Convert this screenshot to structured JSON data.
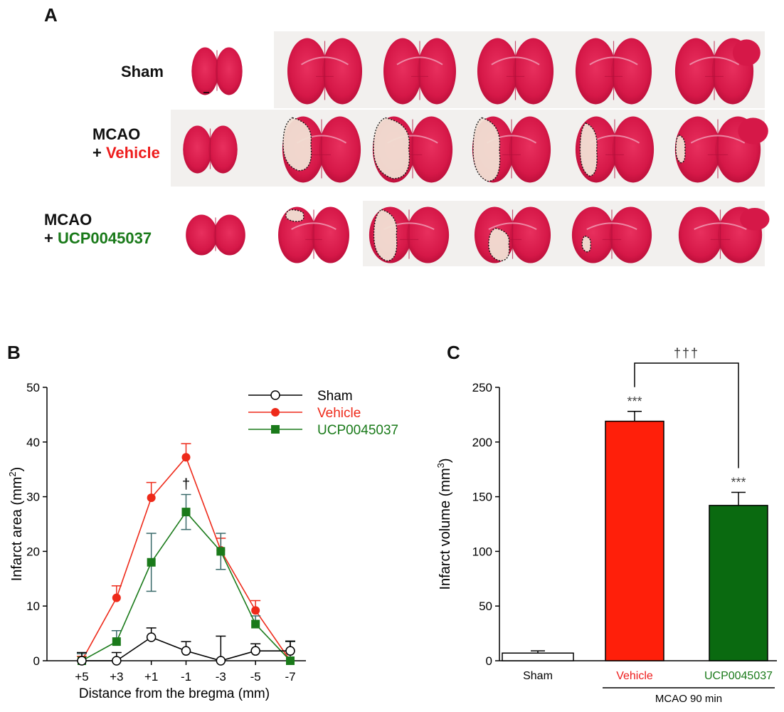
{
  "panelA": {
    "letter": "A",
    "rows": [
      {
        "label_line1": "Sham",
        "label_line2": "",
        "color2": "#000000"
      },
      {
        "label_line1": "MCAO",
        "label_prefix": "+ ",
        "label_line2": "Vehicle",
        "color2": "#ee1c1c"
      },
      {
        "label_line1": "MCAO",
        "label_prefix": "+ ",
        "label_line2": "UCP0045037",
        "color2": "#1a7a1a"
      }
    ]
  },
  "panelB_letter": "B",
  "panelC_letter": "C",
  "colors": {
    "sham": "#000000",
    "vehicle": "#ee2a1a",
    "ucp": "#1a7a1a",
    "ucp_err": "#3a6a6a",
    "tissue": "#d81c4a",
    "tissue_dark": "#b0103a",
    "infarct": "#f2e0d4"
  },
  "chart_data": [
    {
      "type": "line",
      "xlabel": "Distance from the bregma (mm)",
      "ylabel_main": "Infarct area (mm",
      "ylabel_sup": "2",
      "ylabel_close": ")",
      "categories": [
        "+5",
        "+3",
        "+1",
        "-1",
        "-3",
        "-5",
        "-7"
      ],
      "ylim": [
        0,
        50
      ],
      "yticks": [
        "0",
        "10",
        "20",
        "30",
        "40",
        "50"
      ],
      "annotation": "†",
      "series": [
        {
          "name": "Sham",
          "marker": "open-circle",
          "values": [
            0,
            0,
            4.3,
            1.8,
            0,
            1.8,
            1.8
          ],
          "err": [
            1.5,
            1.5,
            1.7,
            1.7,
            4.5,
            1.3,
            1.8
          ]
        },
        {
          "name": "Vehicle",
          "marker": "circle",
          "values": [
            0,
            11.5,
            29.8,
            37.2,
            20.2,
            9.2,
            0
          ],
          "err": [
            0.8,
            2.2,
            2.8,
            2.5,
            2.2,
            1.8,
            3.5
          ]
        },
        {
          "name": "UCP0045037",
          "marker": "square",
          "values": [
            0,
            3.5,
            18.0,
            27.2,
            20.0,
            6.7,
            0
          ],
          "err": [
            1.3,
            2.0,
            5.3,
            3.2,
            3.3,
            1.5,
            3.5
          ]
        }
      ]
    },
    {
      "type": "bar",
      "ylabel_main": "Infarct volume (mm",
      "ylabel_sup": "3",
      "ylabel_close": ")",
      "categories": [
        "Sham",
        "Vehicle",
        "UCP0045037"
      ],
      "values": [
        7,
        219,
        142
      ],
      "err": [
        2,
        9,
        12
      ],
      "ylim": [
        0,
        250
      ],
      "yticks": [
        "0",
        "50",
        "100",
        "150",
        "200",
        "250"
      ],
      "star_labels": [
        "",
        "***",
        "***"
      ],
      "bracket_label": "†††",
      "group_label": "MCAO 90 min"
    }
  ]
}
